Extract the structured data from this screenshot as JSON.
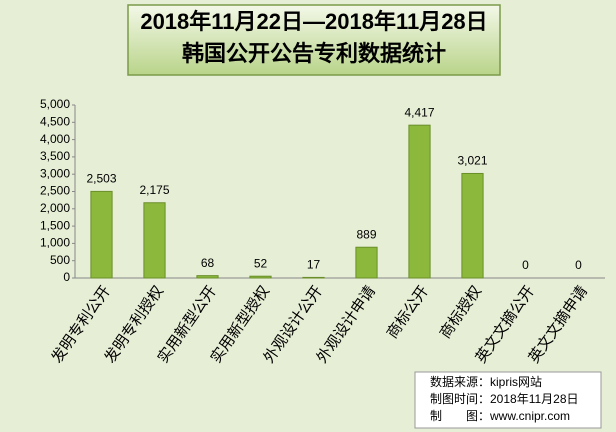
{
  "chart_data": {
    "type": "bar",
    "title": "2018年11月22日—2018年11月28日",
    "subtitle": "韩国公开公告专利数据统计",
    "categories": [
      "发明专利公开",
      "发明专利授权",
      "实用新型公开",
      "实用新型授权",
      "外观设计公开",
      "外观设计申请",
      "商标公开",
      "商标授权",
      "英文文摘公开",
      "英文文摘申请"
    ],
    "values": [
      2503,
      2175,
      68,
      52,
      17,
      889,
      4417,
      3021,
      0,
      0
    ],
    "value_labels": [
      "2,503",
      "2,175",
      "68",
      "52",
      "17",
      "889",
      "4,417",
      "3,021",
      "0",
      "0"
    ],
    "color": "#8cb83c",
    "ylim": [
      0,
      5000
    ],
    "yticks": [
      0,
      500,
      {
        "value": 1000,
        "label": "1,000"
      },
      {
        "value": 1500,
        "label": "1,500"
      },
      {
        "value": 2000,
        "label": "2,000"
      },
      {
        "value": 2500,
        "label": "2,500"
      },
      {
        "value": 3000,
        "label": "3,000"
      },
      {
        "value": 3500,
        "label": "3,500"
      },
      {
        "value": 4000,
        "label": "4,000"
      },
      {
        "value": 4500,
        "label": "4,500"
      },
      {
        "value": 5000,
        "label": "5,000"
      }
    ],
    "annotations": [
      "数据来源：kipris网站",
      "制图时间：2018年11月28日",
      "制　　图：www.cnipr.com"
    ]
  }
}
